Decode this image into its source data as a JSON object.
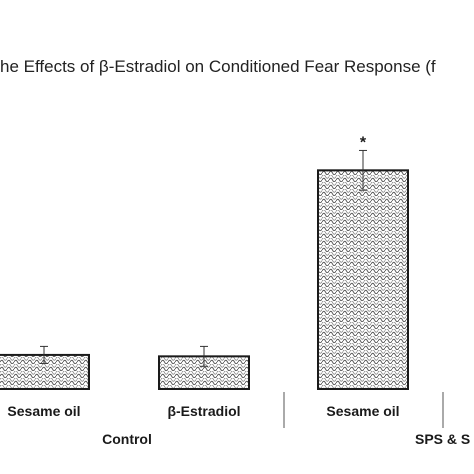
{
  "chart_data": {
    "type": "bar",
    "title": "he Effects of β-Estradiol on Conditioned Fear Response (f",
    "categories": [
      "Sesame oil",
      "β-Estradiol",
      "Sesame oil"
    ],
    "groups": [
      {
        "label": "Control",
        "categories": [
          0,
          1
        ]
      },
      {
        "label": "SPS & S",
        "categories": [
          2
        ]
      }
    ],
    "series": [
      {
        "values": [
          12,
          11.5,
          77
        ],
        "errors": [
          3,
          3.5,
          7
        ]
      }
    ],
    "annotations": [
      {
        "category_index": 2,
        "text": "*"
      }
    ],
    "ylim": [
      0,
      100
    ],
    "xlabel": "",
    "ylabel": "",
    "grid": false,
    "bar_fill": "hatched",
    "bar_color": "#1a1a1a"
  }
}
